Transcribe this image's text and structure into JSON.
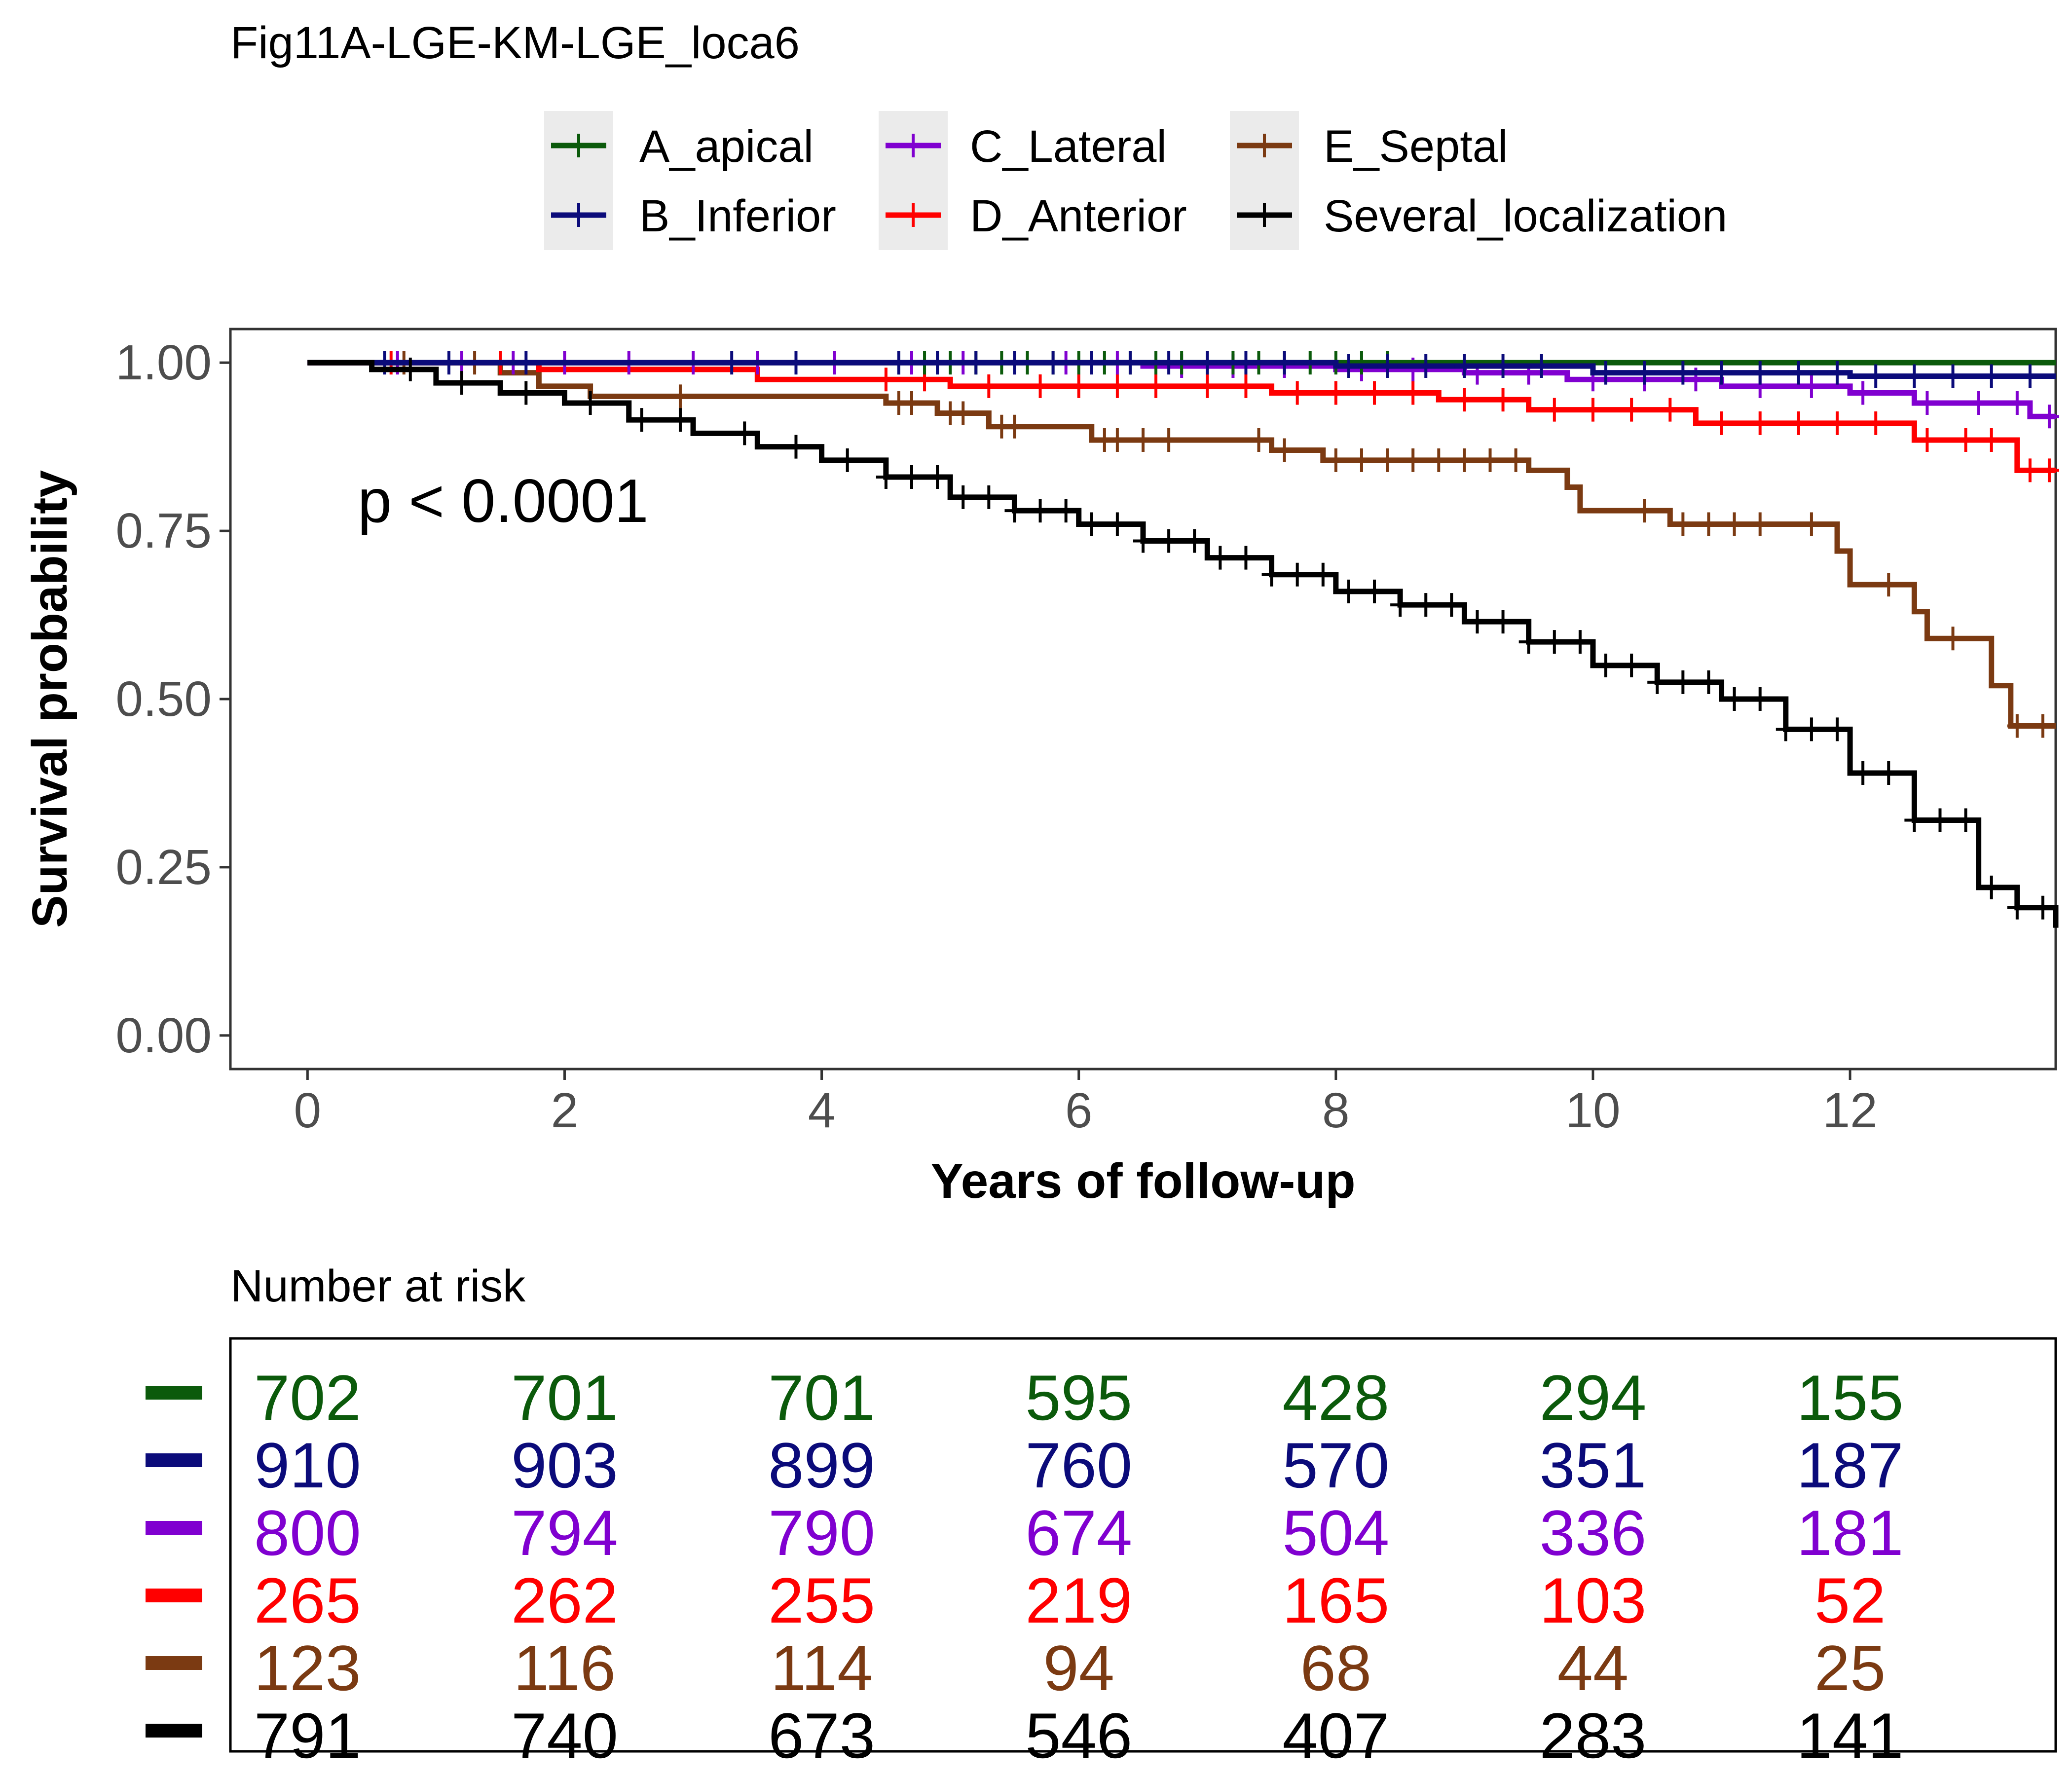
{
  "title": "Fig11A-LGE-KM-LGE_loca6",
  "pvalue_text": "p < 0.0001",
  "risk_table_title": "Number at risk",
  "chart_data": {
    "type": "line",
    "subtype": "kaplan-meier",
    "title": "Fig11A-LGE-KM-LGE_loca6",
    "xlabel": "Years of follow-up",
    "ylabel": "Survival probability",
    "xlim": [
      -0.6,
      13.6
    ],
    "ylim": [
      -0.05,
      1.05
    ],
    "x_ticks": [
      0,
      2,
      4,
      6,
      8,
      10,
      12
    ],
    "x_tick_labels": [
      "0",
      "2",
      "4",
      "6",
      "8",
      "10",
      "12"
    ],
    "y_ticks": [
      0,
      0.25,
      0.5,
      0.75,
      1.0
    ],
    "y_tick_labels": [
      "0.00",
      "0.25",
      "0.50",
      "0.75",
      "1.00"
    ],
    "grid": false,
    "legend_position": "top",
    "series": [
      {
        "name": "A_apical",
        "color": "#0b5a0b",
        "steps": [
          [
            0,
            1.0
          ],
          [
            13.6,
            1.0
          ]
        ],
        "censor_x": [
          4.6,
          4.8,
          5.0,
          5.2,
          5.4,
          5.6,
          5.8,
          6.0,
          6.2,
          6.4,
          6.6,
          6.8,
          7.0,
          7.2,
          7.4,
          7.6,
          7.8,
          8.0,
          8.2,
          8.4
        ]
      },
      {
        "name": "B_Inferior",
        "color": "#0b0b7a",
        "steps": [
          [
            0,
            1.0
          ],
          [
            8.0,
            1.0
          ],
          [
            8.0,
            0.995
          ],
          [
            10.0,
            0.995
          ],
          [
            10.0,
            0.985
          ],
          [
            12.0,
            0.985
          ],
          [
            12.0,
            0.98
          ],
          [
            13.6,
            0.98
          ]
        ],
        "censor_x": [
          0.6,
          1.1,
          1.7,
          3.3,
          3.8,
          4.6,
          4.9,
          5.2,
          5.5,
          5.8,
          6.1,
          6.4,
          6.7,
          7.0,
          7.3,
          7.6,
          8.1,
          8.4,
          8.7,
          9.0,
          9.3,
          9.6,
          10.1,
          10.4,
          10.7,
          11.0,
          11.3,
          11.6,
          11.9,
          12.2,
          12.5,
          12.8,
          13.1,
          13.4
        ]
      },
      {
        "name": "C_Lateral",
        "color": "#8000d0",
        "steps": [
          [
            0,
            1.0
          ],
          [
            6.5,
            1.0
          ],
          [
            6.5,
            0.995
          ],
          [
            8.0,
            0.995
          ],
          [
            8.0,
            0.99
          ],
          [
            9.0,
            0.99
          ],
          [
            9.0,
            0.985
          ],
          [
            9.8,
            0.985
          ],
          [
            9.8,
            0.975
          ],
          [
            11.0,
            0.975
          ],
          [
            11.0,
            0.965
          ],
          [
            12.0,
            0.965
          ],
          [
            12.0,
            0.955
          ],
          [
            12.5,
            0.955
          ],
          [
            12.5,
            0.94
          ],
          [
            13.4,
            0.94
          ],
          [
            13.4,
            0.92
          ],
          [
            13.6,
            0.92
          ]
        ],
        "censor_x": [
          0.7,
          1.2,
          1.6,
          2.0,
          2.5,
          3.0,
          3.5,
          4.1,
          4.7,
          5.1,
          5.5,
          5.9,
          6.3,
          6.8,
          7.2,
          7.6,
          8.2,
          8.6,
          9.1,
          9.5,
          10.0,
          10.4,
          10.8,
          11.3,
          11.7,
          12.1,
          12.6,
          13.0,
          13.3,
          13.55
        ]
      },
      {
        "name": "D_Anterior",
        "color": "#ff0000",
        "steps": [
          [
            0,
            1.0
          ],
          [
            1.8,
            1.0
          ],
          [
            1.8,
            0.99
          ],
          [
            3.5,
            0.99
          ],
          [
            3.5,
            0.975
          ],
          [
            5.0,
            0.975
          ],
          [
            5.0,
            0.965
          ],
          [
            7.5,
            0.965
          ],
          [
            7.5,
            0.955
          ],
          [
            8.8,
            0.955
          ],
          [
            8.8,
            0.945
          ],
          [
            9.5,
            0.945
          ],
          [
            9.5,
            0.93
          ],
          [
            10.8,
            0.93
          ],
          [
            10.8,
            0.91
          ],
          [
            12.5,
            0.91
          ],
          [
            12.5,
            0.885
          ],
          [
            13.3,
            0.885
          ],
          [
            13.3,
            0.84
          ],
          [
            13.6,
            0.84
          ]
        ],
        "censor_x": [
          0.65,
          1.5,
          4.5,
          4.8,
          5.3,
          5.7,
          6.0,
          6.3,
          6.6,
          7.0,
          7.3,
          7.7,
          8.0,
          8.3,
          8.6,
          9.0,
          9.3,
          9.7,
          10.0,
          10.3,
          10.6,
          11.0,
          11.3,
          11.6,
          11.9,
          12.2,
          12.6,
          12.9,
          13.1,
          13.4,
          13.55
        ]
      },
      {
        "name": "E_Septal",
        "color": "#7b3a12",
        "steps": [
          [
            0,
            1.0
          ],
          [
            1.5,
            1.0
          ],
          [
            1.5,
            0.985
          ],
          [
            1.8,
            0.985
          ],
          [
            1.8,
            0.965
          ],
          [
            2.2,
            0.965
          ],
          [
            2.2,
            0.95
          ],
          [
            4.5,
            0.95
          ],
          [
            4.5,
            0.94
          ],
          [
            4.9,
            0.94
          ],
          [
            4.9,
            0.925
          ],
          [
            5.3,
            0.925
          ],
          [
            5.3,
            0.905
          ],
          [
            6.1,
            0.905
          ],
          [
            6.1,
            0.885
          ],
          [
            7.5,
            0.885
          ],
          [
            7.5,
            0.87
          ],
          [
            7.9,
            0.87
          ],
          [
            7.9,
            0.855
          ],
          [
            9.5,
            0.855
          ],
          [
            9.5,
            0.84
          ],
          [
            9.8,
            0.84
          ],
          [
            9.8,
            0.815
          ],
          [
            9.9,
            0.815
          ],
          [
            9.9,
            0.78
          ],
          [
            10.6,
            0.78
          ],
          [
            10.6,
            0.76
          ],
          [
            11.9,
            0.76
          ],
          [
            11.9,
            0.72
          ],
          [
            12.0,
            0.72
          ],
          [
            12.0,
            0.67
          ],
          [
            12.5,
            0.67
          ],
          [
            12.5,
            0.63
          ],
          [
            12.6,
            0.63
          ],
          [
            12.6,
            0.59
          ],
          [
            13.1,
            0.59
          ],
          [
            13.1,
            0.52
          ],
          [
            13.25,
            0.52
          ],
          [
            13.25,
            0.46
          ],
          [
            13.6,
            0.46
          ]
        ],
        "censor_x": [
          0.75,
          1.3,
          2.9,
          4.6,
          4.7,
          5.0,
          5.1,
          5.4,
          5.5,
          6.2,
          6.3,
          6.5,
          6.7,
          7.4,
          7.6,
          8.0,
          8.2,
          8.4,
          8.6,
          8.8,
          9.0,
          9.2,
          9.4,
          10.4,
          10.7,
          10.9,
          11.1,
          11.3,
          11.7,
          12.3,
          12.8,
          13.3,
          13.5
        ]
      },
      {
        "name": "Several_localization",
        "color": "#000000",
        "steps": [
          [
            0,
            1.0
          ],
          [
            0.5,
            0.99
          ],
          [
            1.0,
            0.97
          ],
          [
            1.5,
            0.955
          ],
          [
            2.0,
            0.94
          ],
          [
            2.5,
            0.915
          ],
          [
            3.0,
            0.895
          ],
          [
            3.5,
            0.875
          ],
          [
            4.0,
            0.855
          ],
          [
            4.5,
            0.83
          ],
          [
            5.0,
            0.8
          ],
          [
            5.5,
            0.78
          ],
          [
            6.0,
            0.76
          ],
          [
            6.5,
            0.735
          ],
          [
            7.0,
            0.71
          ],
          [
            7.5,
            0.685
          ],
          [
            8.0,
            0.66
          ],
          [
            8.5,
            0.64
          ],
          [
            9.0,
            0.615
          ],
          [
            9.5,
            0.585
          ],
          [
            10.0,
            0.55
          ],
          [
            10.5,
            0.525
          ],
          [
            11.0,
            0.5
          ],
          [
            11.5,
            0.455
          ],
          [
            12.0,
            0.39
          ],
          [
            12.5,
            0.32
          ],
          [
            13.0,
            0.22
          ],
          [
            13.3,
            0.19
          ],
          [
            13.6,
            0.16
          ]
        ],
        "censor_x": [
          0.8,
          1.2,
          1.7,
          2.2,
          2.6,
          2.9,
          3.4,
          3.8,
          4.2,
          4.5,
          4.7,
          4.9,
          5.1,
          5.3,
          5.5,
          5.7,
          5.9,
          6.1,
          6.3,
          6.5,
          6.7,
          6.9,
          7.1,
          7.3,
          7.5,
          7.7,
          7.9,
          8.1,
          8.3,
          8.5,
          8.7,
          8.9,
          9.1,
          9.3,
          9.5,
          9.7,
          9.9,
          10.1,
          10.3,
          10.5,
          10.7,
          10.9,
          11.1,
          11.3,
          11.5,
          11.7,
          11.9,
          12.1,
          12.3,
          12.5,
          12.7,
          12.9,
          13.1,
          13.3,
          13.5
        ]
      }
    ],
    "risk_table": {
      "times": [
        0,
        2,
        4,
        6,
        8,
        10,
        12
      ],
      "rows": [
        {
          "name": "A_apical",
          "color": "#0b5a0b",
          "values": [
            "702",
            "701",
            "701",
            "595",
            "428",
            "294",
            "155"
          ]
        },
        {
          "name": "B_Inferior",
          "color": "#0b0b7a",
          "values": [
            "910",
            "903",
            "899",
            "760",
            "570",
            "351",
            "187"
          ]
        },
        {
          "name": "C_Lateral",
          "color": "#8000d0",
          "values": [
            "800",
            "794",
            "790",
            "674",
            "504",
            "336",
            "181"
          ]
        },
        {
          "name": "D_Anterior",
          "color": "#ff0000",
          "values": [
            "265",
            "262",
            "255",
            "219",
            "165",
            "103",
            "52"
          ]
        },
        {
          "name": "E_Septal",
          "color": "#7b3a12",
          "values": [
            "123",
            "116",
            "114",
            "94",
            "68",
            "44",
            "25"
          ]
        },
        {
          "name": "Several_localization",
          "color": "#000000",
          "values": [
            "791",
            "740",
            "673",
            "546",
            "407",
            "283",
            "141"
          ]
        }
      ]
    }
  }
}
